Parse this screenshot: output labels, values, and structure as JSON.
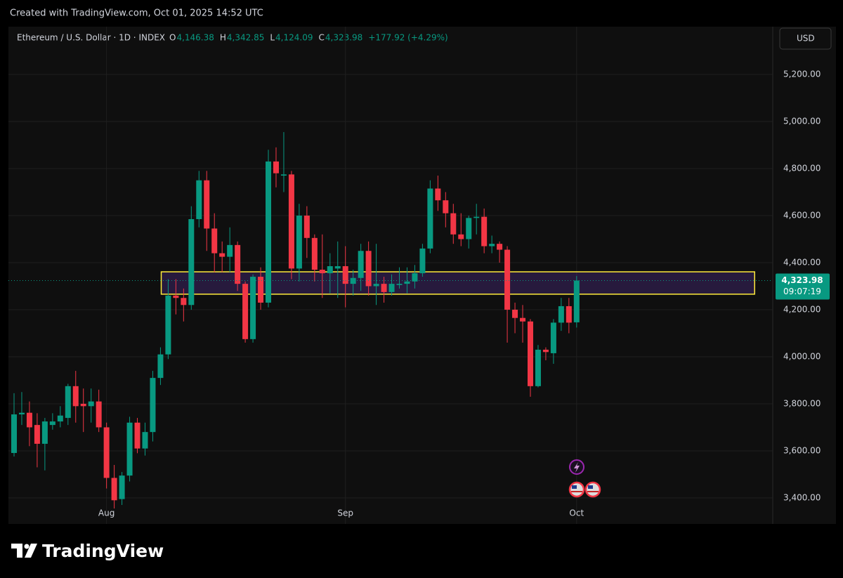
{
  "chart_data": {
    "type": "candlestick",
    "watermark": "Created with TradingView.com, Oct 01, 2025 14:52 UTC",
    "title": "Ethereum / U.S. Dollar · 1D · INDEX",
    "ohlc_header": [
      {
        "key": "O",
        "text": "4,146.38"
      },
      {
        "key": "H",
        "text": "4,342.85"
      },
      {
        "key": "L",
        "text": "4,124.09"
      },
      {
        "key": "C",
        "text": "4,323.98"
      }
    ],
    "change": "+177.92 (+4.29%)",
    "currency": "USD",
    "last_price_label": "4,323.98",
    "countdown": "09:07:19",
    "brand": "TradingView",
    "up_color": "#089981",
    "down_color": "#f23645",
    "zone": {
      "x": [
        19.1,
        96.1
      ],
      "y": [
        4266,
        4361
      ],
      "color": "#ffeb3b"
    },
    "grid": true,
    "ylim": [
      3373,
      5403
    ],
    "yticks": [
      {
        "value": 3400,
        "label": "3,400.00"
      },
      {
        "value": 3600,
        "label": "3,600.00"
      },
      {
        "value": 3800,
        "label": "3,800.00"
      },
      {
        "value": 4000,
        "label": "4,000.00"
      },
      {
        "value": 4200,
        "label": "4,200.00"
      },
      {
        "value": 4400,
        "label": "4,400.00"
      },
      {
        "value": 4600,
        "label": "4,600.00"
      },
      {
        "value": 4800,
        "label": "4,800.00"
      },
      {
        "value": 5000,
        "label": "5,000.00"
      },
      {
        "value": 5200,
        "label": "5,200.00"
      }
    ],
    "categories": [
      null,
      null,
      null,
      null,
      null,
      null,
      null,
      null,
      null,
      null,
      null,
      null,
      "Aug",
      null,
      null,
      null,
      null,
      null,
      null,
      null,
      null,
      null,
      null,
      null,
      null,
      null,
      null,
      null,
      null,
      null,
      null,
      null,
      null,
      null,
      null,
      null,
      null,
      null,
      null,
      null,
      null,
      null,
      null,
      "Sep",
      null,
      null,
      null,
      null,
      null,
      null,
      null,
      null,
      null,
      null,
      null,
      null,
      null,
      null,
      null,
      null,
      null,
      null,
      null,
      null,
      null,
      null,
      null,
      null,
      null,
      null,
      null,
      null,
      null,
      "Oct"
    ],
    "open": [
      3591,
      3755,
      3762,
      3710,
      3630,
      3710,
      3725,
      3740,
      3875,
      3800,
      3790,
      3810,
      3700,
      3485,
      3395,
      3495,
      3720,
      3610,
      3680,
      3910,
      4010,
      4260,
      4250,
      4220,
      4585,
      4750,
      4545,
      4440,
      4425,
      4475,
      4310,
      4075,
      4340,
      4230,
      4830,
      4770,
      4775,
      4375,
      4600,
      4505,
      4370,
      4355,
      4375,
      4385,
      4310,
      4335,
      4450,
      4300,
      4310,
      4275,
      4305,
      4310,
      4320,
      4355,
      4460,
      4715,
      4665,
      4610,
      4520,
      4500,
      4590,
      4595,
      4470,
      4480,
      4455,
      4200,
      4165,
      4150,
      3875,
      4030,
      4015,
      4145,
      4215,
      4146.38
    ],
    "high": [
      3845,
      3850,
      3810,
      3760,
      3740,
      3760,
      3790,
      3885,
      3940,
      3865,
      3865,
      3860,
      3720,
      3540,
      3510,
      3745,
      3740,
      3720,
      3940,
      4040,
      4330,
      4330,
      4290,
      4640,
      4790,
      4790,
      4610,
      4490,
      4550,
      4490,
      4320,
      4350,
      4380,
      4880,
      4890,
      4955,
      4790,
      4650,
      4640,
      4520,
      4520,
      4440,
      4490,
      4470,
      4370,
      4480,
      4490,
      4480,
      4340,
      4350,
      4380,
      4380,
      4390,
      4480,
      4750,
      4770,
      4700,
      4650,
      4610,
      4600,
      4650,
      4630,
      4515,
      4490,
      4470,
      4230,
      4220,
      4160,
      4050,
      4040,
      4160,
      4250,
      4250,
      4342.85
    ],
    "low": [
      3576,
      3710,
      3620,
      3530,
      3517,
      3690,
      3700,
      3710,
      3720,
      3680,
      3720,
      3680,
      3440,
      3355,
      3370,
      3470,
      3590,
      3580,
      3640,
      3880,
      3990,
      4180,
      4150,
      4200,
      4550,
      4450,
      4360,
      4360,
      4360,
      4280,
      4060,
      4060,
      4200,
      4210,
      4720,
      4700,
      4330,
      4320,
      4420,
      4320,
      4250,
      4270,
      4250,
      4210,
      4260,
      4280,
      4260,
      4220,
      4230,
      4260,
      4290,
      4270,
      4290,
      4340,
      4440,
      4620,
      4550,
      4480,
      4470,
      4460,
      4520,
      4440,
      4440,
      4400,
      4060,
      4100,
      4060,
      3830,
      3870,
      3985,
      3970,
      4110,
      4100,
      4124.09
    ],
    "close": [
      3755,
      3762,
      3700,
      3630,
      3725,
      3725,
      3750,
      3875,
      3790,
      3790,
      3810,
      3700,
      3485,
      3390,
      3495,
      3720,
      3610,
      3680,
      3910,
      4010,
      4260,
      4250,
      4220,
      4585,
      4750,
      4545,
      4440,
      4425,
      4475,
      4310,
      4075,
      4340,
      4230,
      4830,
      4780,
      4775,
      4375,
      4600,
      4505,
      4370,
      4355,
      4385,
      4385,
      4310,
      4335,
      4450,
      4300,
      4310,
      4275,
      4310,
      4310,
      4320,
      4355,
      4460,
      4715,
      4665,
      4610,
      4520,
      4500,
      4590,
      4595,
      4470,
      4480,
      4455,
      4200,
      4165,
      4150,
      3875,
      4030,
      4020,
      4145,
      4215,
      4145,
      4323.98
    ]
  }
}
